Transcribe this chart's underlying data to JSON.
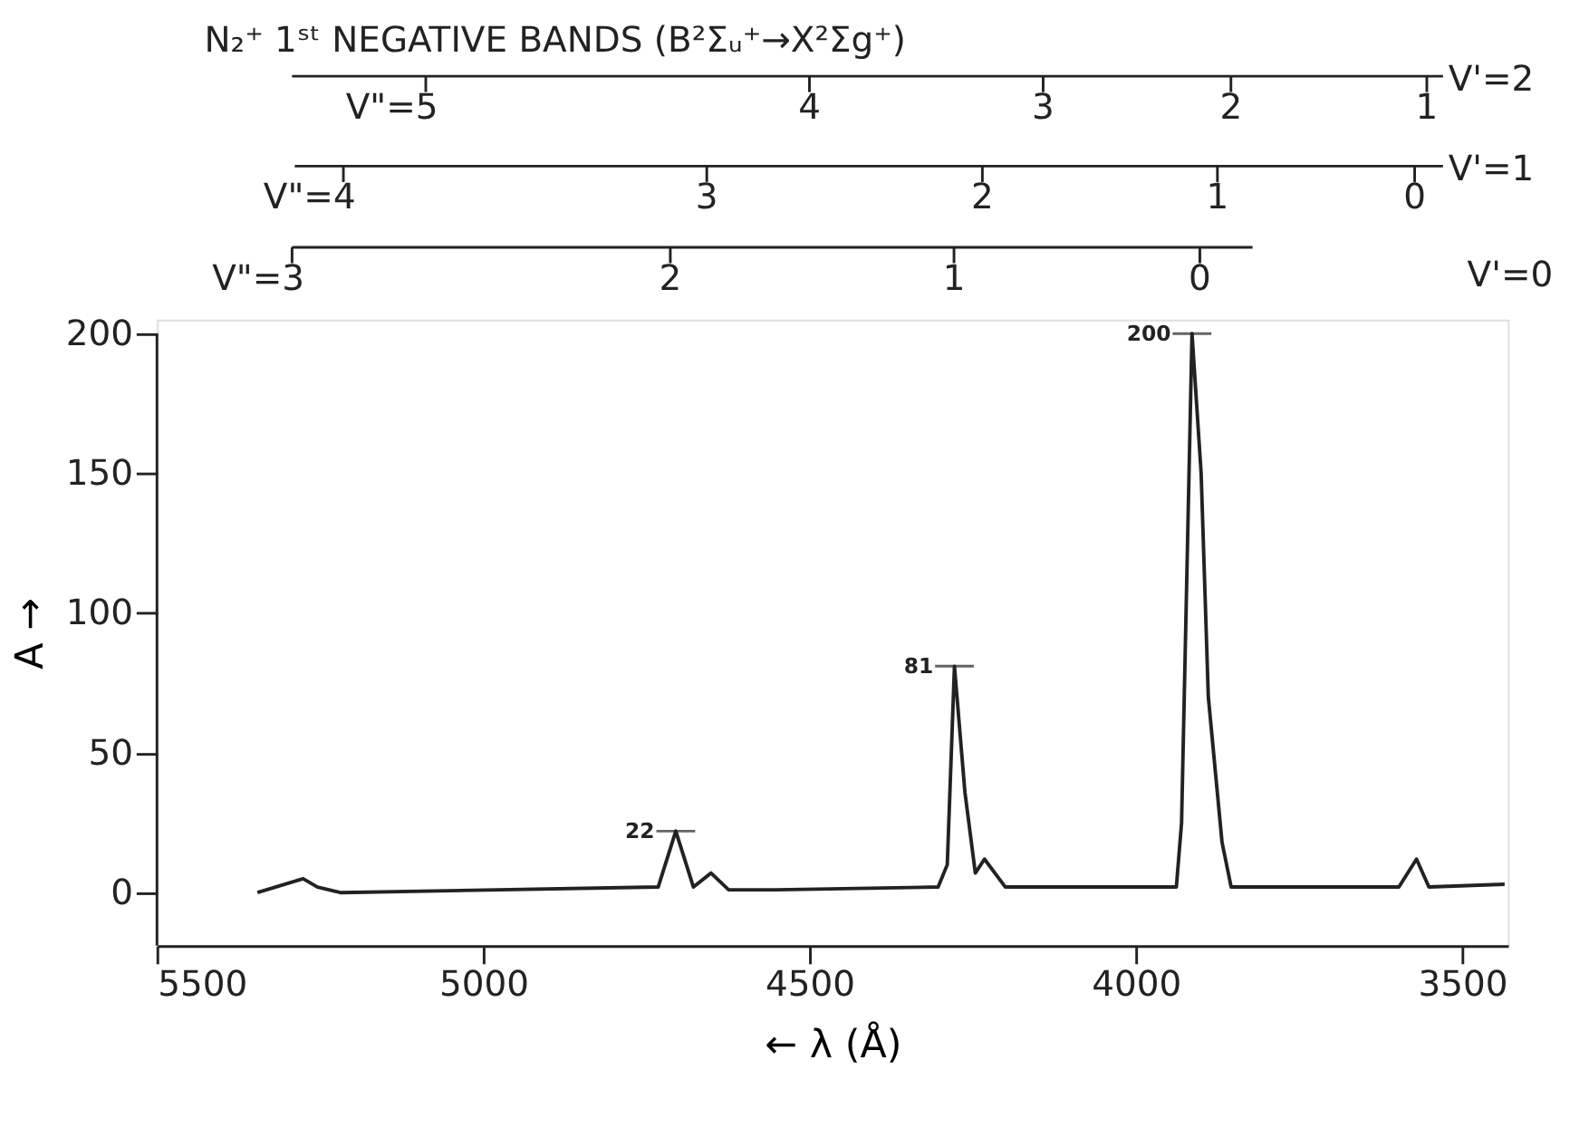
{
  "chart_data": {
    "type": "line",
    "title": "N₂⁺ 1ˢᵗ NEGATIVE BANDS (B²Σᵤ⁺→X²Σg⁺)",
    "xlabel": "← λ (Å)",
    "ylabel": "A →",
    "x": [
      5346,
      5276,
      5254,
      5219,
      4732,
      4705,
      4678,
      4651,
      4624,
      4551,
      4303,
      4289,
      4278,
      4262,
      4246,
      4232,
      4200,
      3938,
      3930,
      3914,
      3900,
      3889,
      3868,
      3854,
      3597,
      3570,
      3551,
      3435
    ],
    "series": [
      {
        "color": "#222222",
        "values": [
          0,
          5,
          2,
          0,
          2,
          22,
          2,
          7,
          1,
          1,
          2,
          10,
          81,
          36,
          7,
          12,
          2,
          2,
          25,
          200,
          150,
          70,
          18,
          2,
          2,
          12,
          2,
          3
        ],
        "value_labels": [
          null,
          null,
          null,
          null,
          null,
          "22",
          null,
          null,
          null,
          null,
          null,
          null,
          "81",
          null,
          null,
          null,
          null,
          null,
          null,
          "200",
          null,
          null,
          null,
          null,
          null,
          null,
          null,
          null
        ]
      }
    ],
    "xlim": [
      5500,
      3430
    ],
    "xticks": [
      5500,
      5000,
      4500,
      4000,
      3500
    ],
    "ylim": [
      -19,
      205
    ],
    "yticks": [
      0,
      50,
      100,
      150,
      200
    ],
    "grid": false,
    "marker": "none",
    "line_style": "solid",
    "annotations": [
      "V\"=5",
      "4",
      "3",
      "2",
      "1",
      "V'=2",
      "V\"=4",
      "3",
      "2",
      "1",
      "0",
      "V'=1",
      "V\"=3",
      "2",
      "1",
      "0",
      "V'=0"
    ]
  }
}
